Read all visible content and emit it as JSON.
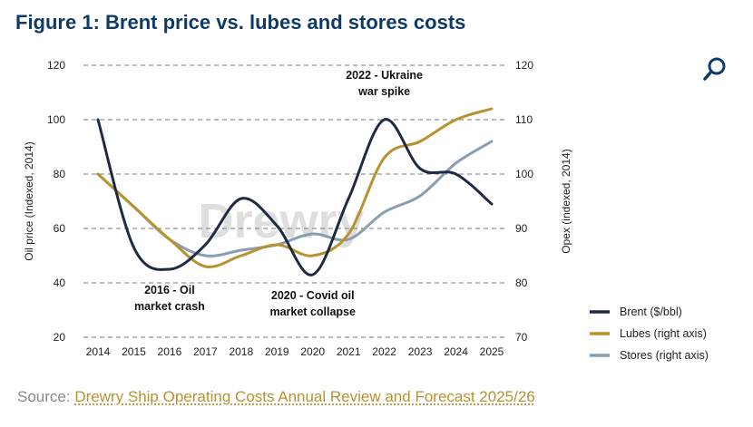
{
  "header": {
    "title": "Figure 1: Brent price vs. lubes and stores costs"
  },
  "toolbar": {
    "search_icon": "search-icon"
  },
  "source": {
    "prefix": "Source: ",
    "link_text": "Drewry Ship Operating Costs Annual Review and Forecast 2025/26"
  },
  "chart_data": {
    "type": "line",
    "title": "Figure 1: Brent price vs. lubes and stores costs",
    "x": [
      "2014",
      "2015",
      "2016",
      "2017",
      "2018",
      "2019",
      "2020",
      "2021",
      "2022",
      "2023",
      "2024",
      "2025"
    ],
    "ylabel_left": "Oil price (Indexed, 2014)",
    "ylabel_right": "Opex (indexed, 2014)",
    "ylim_left": [
      20,
      120
    ],
    "ylim_right": [
      70,
      120
    ],
    "yticks_left": [
      "20",
      "40",
      "60",
      "80",
      "100",
      "120"
    ],
    "yticks_right": [
      "70",
      "80",
      "90",
      "100",
      "110",
      "120"
    ],
    "grid": true,
    "watermark": "Drewry",
    "legend_position": "bottom-right",
    "series": [
      {
        "name": "Brent ($/bbl)",
        "axis": "left",
        "color": "#1f2a44",
        "values": [
          100,
          53,
          45,
          54,
          71,
          61,
          43,
          71,
          100,
          82,
          80,
          69
        ]
      },
      {
        "name": "Lubes (right axis)",
        "axis": "right",
        "color": "#b8922e",
        "values": [
          100,
          94,
          88,
          83,
          85,
          87,
          85,
          89,
          103,
          106,
          110,
          112
        ]
      },
      {
        "name": "Stores (right axis)",
        "axis": "right",
        "color": "#8a9db0",
        "values": [
          100,
          94,
          88,
          85,
          86,
          87,
          89,
          88,
          93,
          96,
          102,
          106
        ]
      }
    ],
    "annotations": [
      {
        "lines": [
          "2016 - Oil",
          "market crash"
        ],
        "x": "2016",
        "y_left": 36
      },
      {
        "lines": [
          "2020 - Covid oil",
          "market collapse"
        ],
        "x": "2020",
        "y_left": 34
      },
      {
        "lines": [
          "2022 - Ukraine",
          "war spike"
        ],
        "x": "2022",
        "y_left": 115
      }
    ]
  }
}
